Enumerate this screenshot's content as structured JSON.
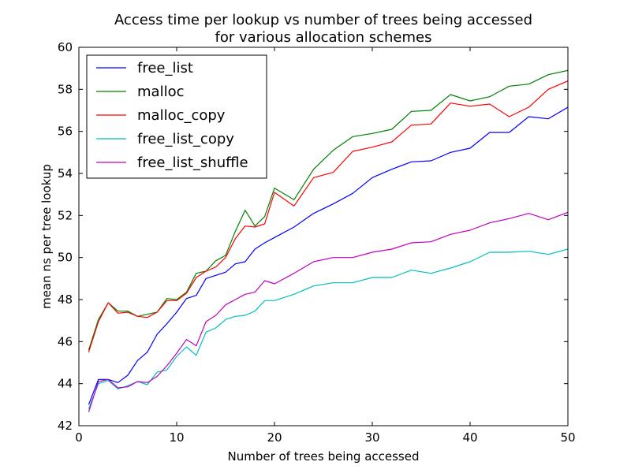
{
  "chart_data": {
    "type": "line",
    "title": "Access time per lookup vs number of trees being accessed",
    "subtitle": "for various allocation schemes",
    "xlabel": "Number of trees being accessed",
    "ylabel": "mean ns per tree lookup",
    "xlim": [
      0,
      50
    ],
    "ylim": [
      42,
      60
    ],
    "xticks": [
      0,
      10,
      20,
      30,
      40,
      50
    ],
    "yticks": [
      42,
      44,
      46,
      48,
      50,
      52,
      54,
      56,
      58,
      60
    ],
    "grid": false,
    "legend_position": "top-left",
    "x": [
      1,
      2,
      3,
      4,
      5,
      6,
      7,
      8,
      9,
      10,
      11,
      12,
      13,
      14,
      15,
      16,
      17,
      18,
      19,
      20,
      22,
      24,
      26,
      28,
      30,
      32,
      34,
      36,
      38,
      40,
      42,
      44,
      46,
      48,
      50
    ],
    "series": [
      {
        "name": "free_list",
        "color": "#0000ff",
        "values": [
          43.0,
          44.2,
          44.2,
          44.05,
          44.4,
          45.1,
          45.5,
          46.35,
          46.85,
          47.4,
          48.05,
          48.2,
          49.0,
          49.15,
          49.3,
          49.7,
          49.8,
          50.4,
          50.7,
          50.95,
          51.45,
          52.1,
          52.55,
          53.05,
          53.8,
          54.2,
          54.55,
          54.6,
          55.0,
          55.2,
          55.95,
          55.95,
          56.7,
          56.6,
          57.15
        ]
      },
      {
        "name": "malloc",
        "color": "#008000",
        "values": [
          45.6,
          47.05,
          47.85,
          47.45,
          47.45,
          47.2,
          47.3,
          47.4,
          48.05,
          48.0,
          48.35,
          49.25,
          49.35,
          49.85,
          50.1,
          51.25,
          52.25,
          51.5,
          51.95,
          53.3,
          52.75,
          54.2,
          55.1,
          55.75,
          55.9,
          56.1,
          56.95,
          57.0,
          57.75,
          57.45,
          57.65,
          58.15,
          58.25,
          58.7,
          58.9
        ]
      },
      {
        "name": "malloc_copy",
        "color": "#ff0000",
        "values": [
          45.5,
          46.95,
          47.85,
          47.35,
          47.4,
          47.2,
          47.15,
          47.4,
          47.95,
          47.95,
          48.3,
          49.05,
          49.35,
          49.55,
          50.0,
          50.9,
          51.5,
          51.45,
          51.6,
          53.1,
          52.45,
          53.8,
          54.05,
          55.05,
          55.25,
          55.5,
          56.3,
          56.35,
          57.35,
          57.2,
          57.3,
          56.7,
          57.15,
          58.0,
          58.4
        ]
      },
      {
        "name": "free_list_copy",
        "color": "#00bfbf",
        "values": [
          42.8,
          44.0,
          44.15,
          43.75,
          43.9,
          44.1,
          43.95,
          44.55,
          44.65,
          45.3,
          45.75,
          45.35,
          46.45,
          46.65,
          47.05,
          47.2,
          47.25,
          47.45,
          47.95,
          47.95,
          48.25,
          48.65,
          48.8,
          48.8,
          49.05,
          49.05,
          49.4,
          49.25,
          49.5,
          49.8,
          50.25,
          50.25,
          50.3,
          50.15,
          50.4
        ]
      },
      {
        "name": "free_list_shuffle",
        "color": "#bf00bf",
        "values": [
          42.65,
          44.1,
          44.2,
          43.8,
          43.85,
          44.1,
          44.05,
          44.35,
          44.85,
          45.45,
          46.1,
          45.8,
          46.95,
          47.25,
          47.75,
          48.0,
          48.25,
          48.35,
          48.9,
          48.75,
          49.25,
          49.8,
          50.0,
          50.0,
          50.25,
          50.4,
          50.7,
          50.75,
          51.1,
          51.3,
          51.65,
          51.85,
          52.1,
          51.8,
          52.15
        ]
      }
    ]
  }
}
